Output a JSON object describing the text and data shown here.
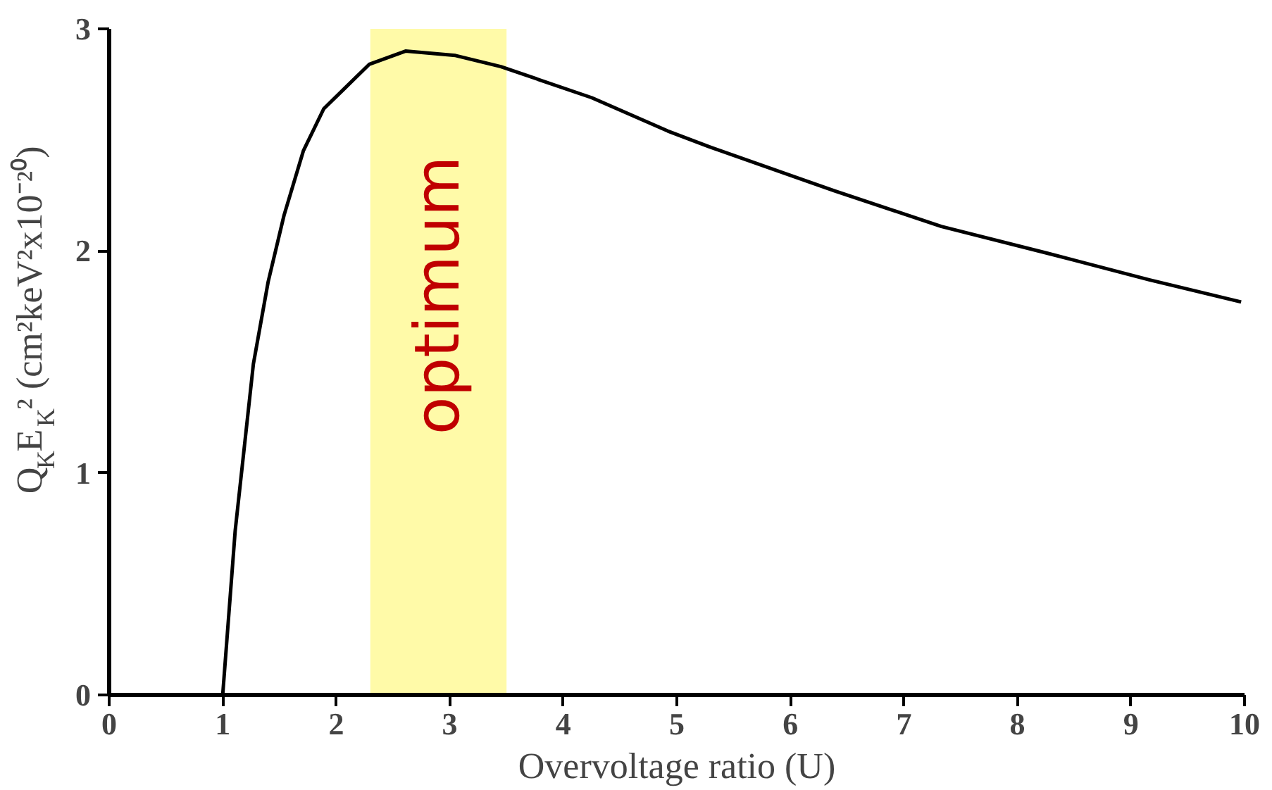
{
  "chart_data": {
    "type": "line",
    "xlabel": "Overvoltage ratio (U)",
    "ylabel": "Q$_{K}$E$_{K}$² (cm²keV²x10⁻²⁰)",
    "x": [
      1.0,
      1.11,
      1.27,
      1.4,
      1.54,
      1.71,
      1.89,
      2.07,
      2.29,
      2.61,
      3.05,
      3.45,
      4.25,
      4.92,
      5.28,
      6.39,
      7.33,
      8.26,
      9.16,
      9.97
    ],
    "series": [
      {
        "color": "#000000",
        "values": [
          0.0,
          0.74,
          1.49,
          1.86,
          2.16,
          2.45,
          2.64,
          2.73,
          2.84,
          2.9,
          2.88,
          2.83,
          2.69,
          2.54,
          2.47,
          2.27,
          2.11,
          1.99,
          1.87,
          1.77
        ]
      }
    ],
    "xlim": [
      0,
      10
    ],
    "ylim": [
      0,
      3
    ],
    "xticks": [
      0,
      1,
      2,
      3,
      4,
      5,
      6,
      7,
      8,
      9,
      10
    ],
    "yticks": [
      0,
      1,
      2,
      3
    ],
    "bands": [
      {
        "axis": "x",
        "from": 2.3,
        "to": 3.5,
        "label": "optimum",
        "color": "#fffaa8"
      }
    ],
    "grid": false,
    "marker": "none",
    "line_style": "solid"
  }
}
